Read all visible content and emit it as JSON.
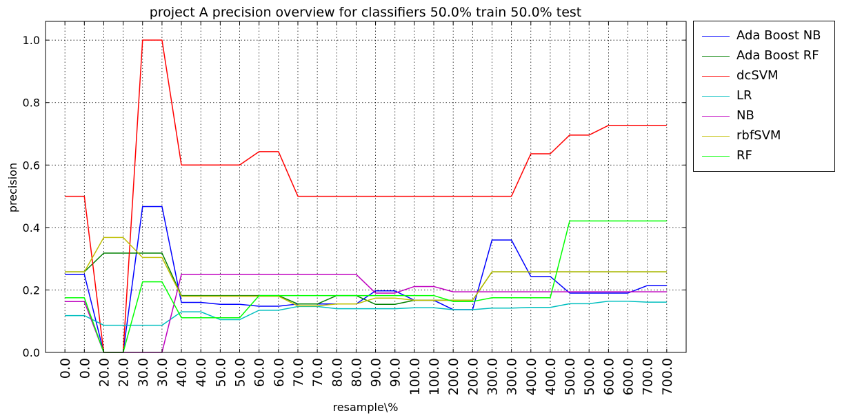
{
  "chart_data": {
    "type": "line",
    "title": "project A precision overview for classifiers 50.0% train 50.0% test",
    "xlabel": "resample\\%",
    "ylabel": "precision",
    "categories": [
      "0.0",
      "0.0",
      "20.0",
      "20.0",
      "30.0",
      "30.0",
      "40.0",
      "40.0",
      "50.0",
      "50.0",
      "60.0",
      "60.0",
      "70.0",
      "70.0",
      "80.0",
      "80.0",
      "90.0",
      "90.0",
      "100.0",
      "100.0",
      "200.0",
      "200.0",
      "300.0",
      "300.0",
      "400.0",
      "400.0",
      "500.0",
      "500.0",
      "600.0",
      "600.0",
      "700.0",
      "700.0"
    ],
    "ylim": [
      0,
      1.06
    ],
    "yticks": [
      "0.0",
      "0.2",
      "0.4",
      "0.6",
      "0.8",
      "1.0"
    ],
    "grid": true,
    "legend_position": "outside-top-right",
    "series": [
      {
        "name": "Ada Boost NB",
        "color": "#0000ff",
        "values": [
          0.25,
          0.25,
          0.0,
          0.0,
          0.467,
          0.467,
          0.16,
          0.16,
          0.154,
          0.154,
          0.148,
          0.148,
          0.155,
          0.155,
          0.155,
          0.155,
          0.197,
          0.197,
          0.167,
          0.167,
          0.137,
          0.137,
          0.36,
          0.36,
          0.243,
          0.243,
          0.19,
          0.19,
          0.19,
          0.19,
          0.214,
          0.214
        ]
      },
      {
        "name": "Ada Boost RF",
        "color": "#008000",
        "values": [
          0.258,
          0.258,
          0.318,
          0.318,
          0.318,
          0.318,
          0.182,
          0.182,
          0.182,
          0.182,
          0.182,
          0.182,
          0.155,
          0.155,
          0.182,
          0.182,
          0.154,
          0.154,
          0.167,
          0.167,
          0.167,
          0.167,
          0.258,
          0.258,
          0.258,
          0.258,
          0.258,
          0.258,
          0.258,
          0.258,
          0.258,
          0.258
        ]
      },
      {
        "name": "dcSVM",
        "color": "#ff0000",
        "values": [
          0.5,
          0.5,
          0.0,
          0.0,
          1.0,
          1.0,
          0.6,
          0.6,
          0.6,
          0.6,
          0.643,
          0.643,
          0.5,
          0.5,
          0.5,
          0.5,
          0.5,
          0.5,
          0.5,
          0.5,
          0.5,
          0.5,
          0.5,
          0.5,
          0.636,
          0.636,
          0.696,
          0.696,
          0.727,
          0.727,
          0.727,
          0.727
        ]
      },
      {
        "name": "LR",
        "color": "#00bfbf",
        "values": [
          0.118,
          0.118,
          0.087,
          0.087,
          0.087,
          0.087,
          0.13,
          0.13,
          0.105,
          0.105,
          0.135,
          0.135,
          0.147,
          0.147,
          0.14,
          0.14,
          0.14,
          0.14,
          0.143,
          0.143,
          0.137,
          0.137,
          0.142,
          0.142,
          0.144,
          0.144,
          0.156,
          0.156,
          0.164,
          0.164,
          0.161,
          0.161
        ]
      },
      {
        "name": "NB",
        "color": "#bf00bf",
        "values": [
          0.163,
          0.163,
          0.0,
          0.0,
          0.0,
          0.0,
          0.25,
          0.25,
          0.25,
          0.25,
          0.25,
          0.25,
          0.25,
          0.25,
          0.25,
          0.25,
          0.19,
          0.19,
          0.211,
          0.211,
          0.194,
          0.194,
          0.194,
          0.194,
          0.194,
          0.194,
          0.194,
          0.194,
          0.194,
          0.194,
          0.194,
          0.194
        ]
      },
      {
        "name": "rbfSVM",
        "color": "#bfbf00",
        "values": [
          0.258,
          0.258,
          0.368,
          0.368,
          0.304,
          0.304,
          0.18,
          0.18,
          0.18,
          0.18,
          0.18,
          0.18,
          0.149,
          0.149,
          0.155,
          0.155,
          0.174,
          0.174,
          0.167,
          0.167,
          0.167,
          0.167,
          0.258,
          0.258,
          0.258,
          0.258,
          0.258,
          0.258,
          0.258,
          0.258,
          0.258,
          0.258
        ]
      },
      {
        "name": "RF",
        "color": "#00ff00",
        "values": [
          0.175,
          0.175,
          0.0,
          0.0,
          0.226,
          0.226,
          0.111,
          0.111,
          0.111,
          0.111,
          0.182,
          0.182,
          0.182,
          0.182,
          0.182,
          0.182,
          0.182,
          0.182,
          0.182,
          0.182,
          0.163,
          0.163,
          0.175,
          0.175,
          0.175,
          0.175,
          0.421,
          0.421,
          0.421,
          0.421,
          0.421,
          0.421
        ]
      }
    ]
  }
}
